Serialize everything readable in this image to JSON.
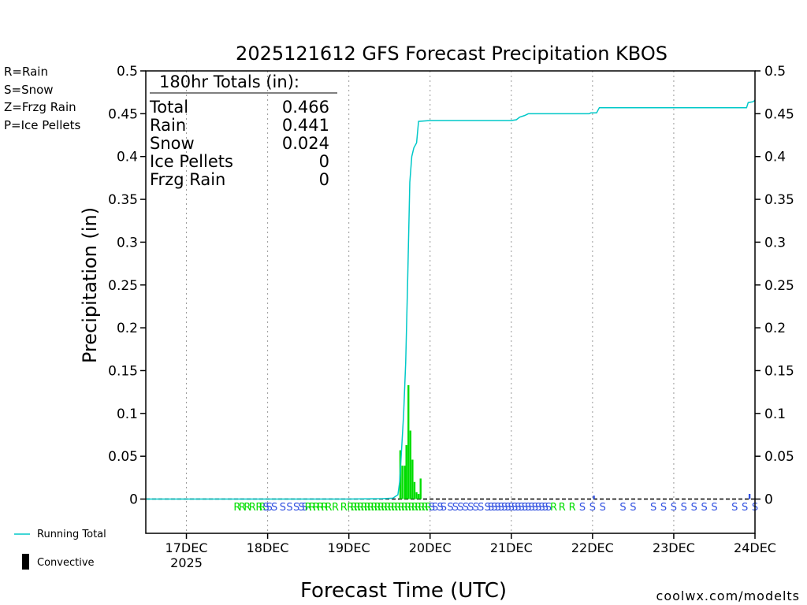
{
  "colors": {
    "rain": "#00dd00",
    "snow": "#3050e0",
    "frzg_rain": "#f09030",
    "ice_pellets": "#e020a0",
    "running_total": "#00c8c8",
    "convective": "#000000",
    "watermark": "#e02020"
  },
  "legend_left": [
    {
      "text": "R=Rain",
      "color_key": "rain"
    },
    {
      "text": "S=Snow",
      "color_key": "snow"
    },
    {
      "text": "Z=Frzg Rain",
      "color_key": "frzg_rain"
    },
    {
      "text": "P=Ice Pellets",
      "color_key": "ice_pellets"
    }
  ],
  "legend_bottom": {
    "running_total": "Running Total",
    "convective": "Convective"
  },
  "watermark": "coolwx.com/modelts",
  "totals_box": {
    "header": "180hr Totals (in):",
    "rows": [
      {
        "label": "Total",
        "value": "0.466"
      },
      {
        "label": "Rain",
        "value": "0.441"
      },
      {
        "label": "Snow",
        "value": "0.024"
      },
      {
        "label": "Ice Pellets",
        "value": "0"
      },
      {
        "label": "Frzg Rain",
        "value": "0"
      }
    ]
  },
  "chart_data": {
    "type": "bar",
    "title": "2025121612 GFS Forecast Precipitation KBOS",
    "xlabel": "Forecast Time (UTC)",
    "ylabel": "Precipitation (in)",
    "x_units": "hours since 2025-12-16 12Z",
    "xlim": [
      0,
      180
    ],
    "ylim": [
      -0.04,
      0.5
    ],
    "yticks": [
      0,
      0.05,
      0.1,
      0.15,
      0.2,
      0.25,
      0.3,
      0.35,
      0.4,
      0.45,
      0.5
    ],
    "ytick_labels": [
      "0",
      "0.05",
      "0.1",
      "0.15",
      "0.2",
      "0.25",
      "0.3",
      "0.35",
      "0.4",
      "0.45",
      "0.5"
    ],
    "xticks": [
      {
        "x": 12,
        "label": "17DEC",
        "sub": "2025"
      },
      {
        "x": 36,
        "label": "18DEC"
      },
      {
        "x": 60,
        "label": "19DEC"
      },
      {
        "x": 84,
        "label": "20DEC"
      },
      {
        "x": 108,
        "label": "21DEC"
      },
      {
        "x": 132,
        "label": "22DEC"
      },
      {
        "x": 156,
        "label": "23DEC"
      },
      {
        "x": 180,
        "label": "24DEC"
      }
    ],
    "grid": "vertical-dotted",
    "bars": [
      {
        "x": 75.2,
        "v": 0.057,
        "type": "rain"
      },
      {
        "x": 75.8,
        "v": 0.039,
        "type": "rain"
      },
      {
        "x": 76.5,
        "v": 0.039,
        "type": "rain"
      },
      {
        "x": 77.0,
        "v": 0.063,
        "type": "rain"
      },
      {
        "x": 77.6,
        "v": 0.133,
        "type": "rain"
      },
      {
        "x": 78.2,
        "v": 0.08,
        "type": "rain"
      },
      {
        "x": 78.8,
        "v": 0.046,
        "type": "rain"
      },
      {
        "x": 79.4,
        "v": 0.02,
        "type": "rain"
      },
      {
        "x": 80.0,
        "v": 0.008,
        "type": "rain"
      },
      {
        "x": 80.6,
        "v": 0.006,
        "type": "rain"
      },
      {
        "x": 81.2,
        "v": 0.024,
        "type": "rain"
      },
      {
        "x": 132.4,
        "v": 0.004,
        "type": "snow"
      },
      {
        "x": 178.4,
        "v": 0.006,
        "type": "snow"
      }
    ],
    "running_total": [
      [
        0,
        0
      ],
      [
        60,
        0
      ],
      [
        70,
        0.0005
      ],
      [
        73,
        0.001
      ],
      [
        74.5,
        0.005
      ],
      [
        75.0,
        0.02
      ],
      [
        75.6,
        0.06
      ],
      [
        76.2,
        0.1
      ],
      [
        76.8,
        0.16
      ],
      [
        77.4,
        0.26
      ],
      [
        78.0,
        0.37
      ],
      [
        78.6,
        0.4
      ],
      [
        79.2,
        0.41
      ],
      [
        80.0,
        0.416
      ],
      [
        80.6,
        0.441
      ],
      [
        84,
        0.442
      ],
      [
        108,
        0.442
      ],
      [
        109.5,
        0.443
      ],
      [
        110.5,
        0.446
      ],
      [
        112,
        0.448
      ],
      [
        113,
        0.45
      ],
      [
        131,
        0.45
      ],
      [
        131.5,
        0.451
      ],
      [
        133.2,
        0.451
      ],
      [
        134,
        0.457
      ],
      [
        176,
        0.457
      ],
      [
        177.5,
        0.457
      ],
      [
        178,
        0.463
      ],
      [
        179.5,
        0.464
      ],
      [
        180,
        0.466
      ]
    ],
    "ptype_row": [
      {
        "x": 27,
        "t": "R"
      },
      {
        "x": 28.5,
        "t": "R"
      },
      {
        "x": 30,
        "t": "R"
      },
      {
        "x": 31.5,
        "t": "R"
      },
      {
        "x": 33.5,
        "t": "R"
      },
      {
        "x": 34.5,
        "t": "R"
      },
      {
        "x": 35.5,
        "t": "S"
      },
      {
        "x": 36.5,
        "t": "S"
      },
      {
        "x": 38,
        "t": "S"
      },
      {
        "x": 40.5,
        "t": "S"
      },
      {
        "x": 42.5,
        "t": "S"
      },
      {
        "x": 44.5,
        "t": "S"
      },
      {
        "x": 46,
        "t": "S"
      },
      {
        "x": 47,
        "t": "S"
      },
      {
        "x": 48,
        "t": "R"
      },
      {
        "x": 49.2,
        "t": "R"
      },
      {
        "x": 50.4,
        "t": "R"
      },
      {
        "x": 51.6,
        "t": "R"
      },
      {
        "x": 52.8,
        "t": "R"
      },
      {
        "x": 54,
        "t": "R"
      },
      {
        "x": 56,
        "t": "R"
      },
      {
        "x": 58.5,
        "t": "R"
      },
      {
        "x": 60.5,
        "t": "R"
      },
      {
        "x": 61.5,
        "t": "R"
      },
      {
        "x": 62.5,
        "t": "R"
      },
      {
        "x": 63.5,
        "t": "R"
      },
      {
        "x": 64.5,
        "t": "R"
      },
      {
        "x": 65.5,
        "t": "R"
      },
      {
        "x": 66.5,
        "t": "R"
      },
      {
        "x": 67.5,
        "t": "R"
      },
      {
        "x": 68.5,
        "t": "R"
      },
      {
        "x": 69.5,
        "t": "R"
      },
      {
        "x": 70.5,
        "t": "R"
      },
      {
        "x": 71.5,
        "t": "R"
      },
      {
        "x": 72.5,
        "t": "R"
      },
      {
        "x": 73.5,
        "t": "R"
      },
      {
        "x": 74.5,
        "t": "R"
      },
      {
        "x": 75.5,
        "t": "R"
      },
      {
        "x": 76.5,
        "t": "R"
      },
      {
        "x": 77.5,
        "t": "R"
      },
      {
        "x": 78.5,
        "t": "R"
      },
      {
        "x": 79.5,
        "t": "R"
      },
      {
        "x": 80.5,
        "t": "R"
      },
      {
        "x": 81.5,
        "t": "R"
      },
      {
        "x": 82.5,
        "t": "R"
      },
      {
        "x": 83.5,
        "t": "R"
      },
      {
        "x": 84.5,
        "t": "S"
      },
      {
        "x": 85.5,
        "t": "S"
      },
      {
        "x": 87,
        "t": "S"
      },
      {
        "x": 88,
        "t": "S"
      },
      {
        "x": 90,
        "t": "S"
      },
      {
        "x": 91.5,
        "t": "S"
      },
      {
        "x": 93,
        "t": "S"
      },
      {
        "x": 94.5,
        "t": "S"
      },
      {
        "x": 96,
        "t": "S"
      },
      {
        "x": 97.5,
        "t": "S"
      },
      {
        "x": 99,
        "t": "S"
      },
      {
        "x": 101,
        "t": "S"
      },
      {
        "x": 102,
        "t": "S"
      },
      {
        "x": 103,
        "t": "S"
      },
      {
        "x": 104,
        "t": "S"
      },
      {
        "x": 105,
        "t": "S"
      },
      {
        "x": 106,
        "t": "S"
      },
      {
        "x": 107,
        "t": "S"
      },
      {
        "x": 108,
        "t": "S"
      },
      {
        "x": 109,
        "t": "S"
      },
      {
        "x": 110,
        "t": "S"
      },
      {
        "x": 111,
        "t": "S"
      },
      {
        "x": 112,
        "t": "S"
      },
      {
        "x": 113,
        "t": "S"
      },
      {
        "x": 114,
        "t": "S"
      },
      {
        "x": 115,
        "t": "S"
      },
      {
        "x": 116,
        "t": "S"
      },
      {
        "x": 117,
        "t": "S"
      },
      {
        "x": 118,
        "t": "S"
      },
      {
        "x": 119,
        "t": "S"
      },
      {
        "x": 120.5,
        "t": "R"
      },
      {
        "x": 123,
        "t": "R"
      },
      {
        "x": 126,
        "t": "R"
      },
      {
        "x": 129,
        "t": "S"
      },
      {
        "x": 132,
        "t": "S"
      },
      {
        "x": 135,
        "t": "S"
      },
      {
        "x": 141,
        "t": "S"
      },
      {
        "x": 144,
        "t": "S"
      },
      {
        "x": 150,
        "t": "S"
      },
      {
        "x": 153,
        "t": "S"
      },
      {
        "x": 156,
        "t": "S"
      },
      {
        "x": 159,
        "t": "S"
      },
      {
        "x": 162,
        "t": "S"
      },
      {
        "x": 165,
        "t": "S"
      },
      {
        "x": 168,
        "t": "S"
      },
      {
        "x": 174,
        "t": "S"
      },
      {
        "x": 177,
        "t": "S"
      },
      {
        "x": 180,
        "t": "S"
      }
    ]
  }
}
